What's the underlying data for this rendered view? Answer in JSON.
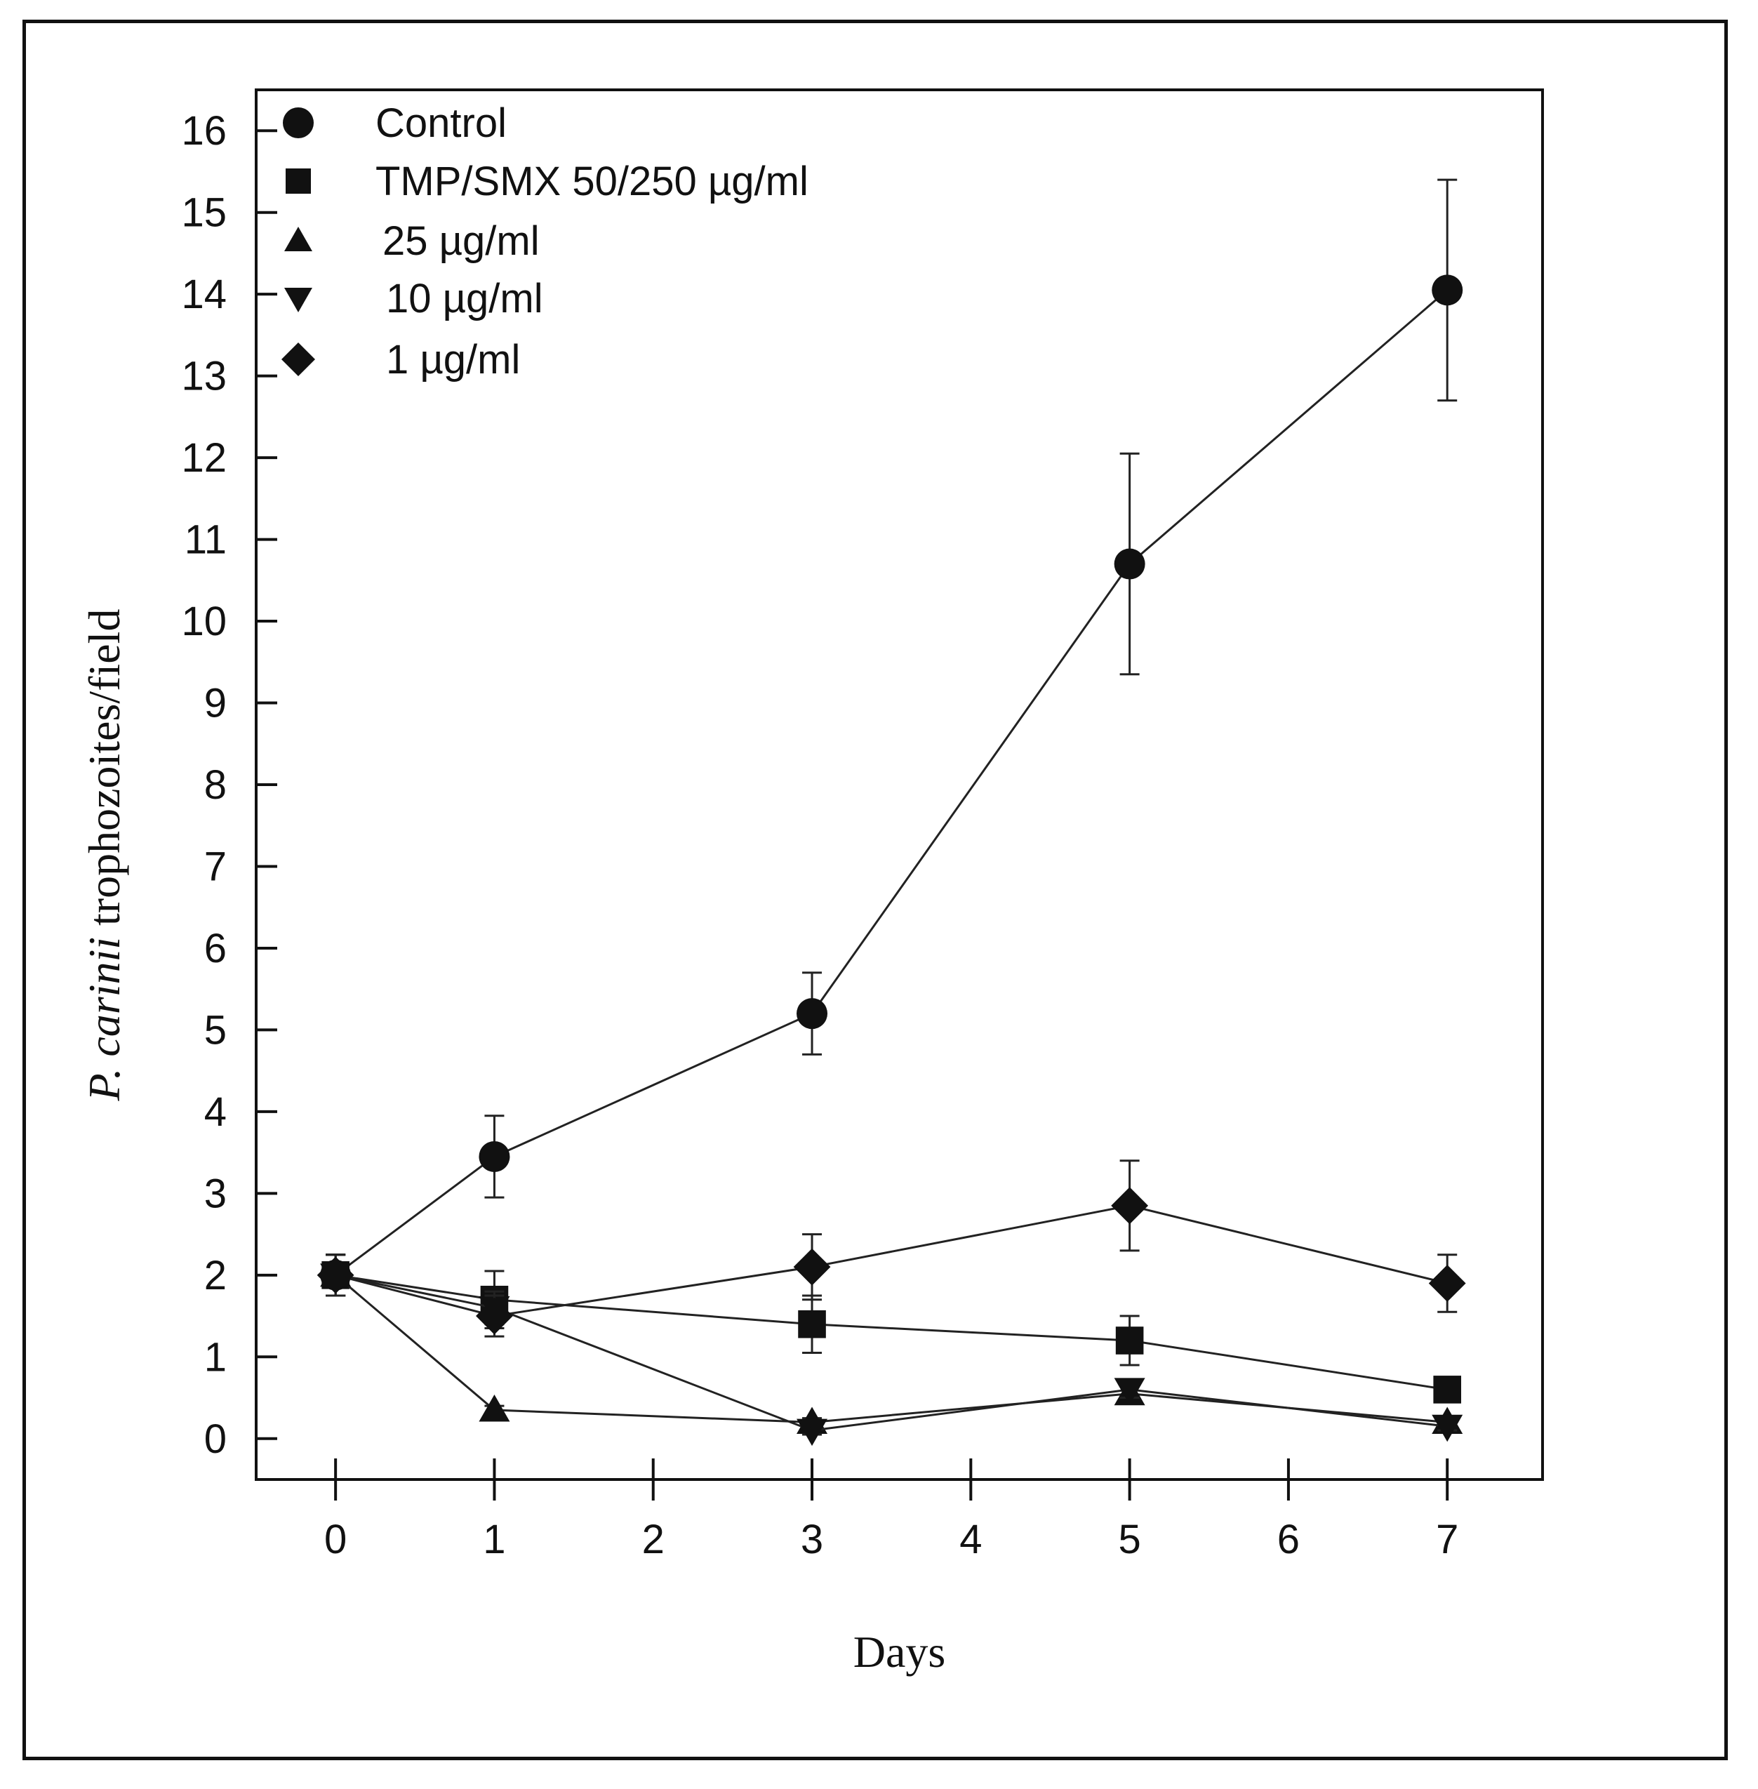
{
  "chart_data": {
    "type": "line",
    "title": "",
    "xlabel": "Days",
    "ylabel_italic": "P. carinii",
    "ylabel_rest": " trophozoites/field",
    "xlim": [
      -0.5,
      7.6
    ],
    "ylim": [
      -0.5,
      16.5
    ],
    "xticks": [
      0,
      1,
      2,
      3,
      4,
      5,
      6,
      7
    ],
    "yticks": [
      0,
      1,
      2,
      3,
      4,
      5,
      6,
      7,
      8,
      9,
      10,
      11,
      12,
      13,
      14,
      15,
      16
    ],
    "grid": false,
    "legend_position": "top-left",
    "series": [
      {
        "name": "Control",
        "marker": "circle",
        "x": [
          0,
          1,
          3,
          5,
          7
        ],
        "y": [
          2.0,
          3.45,
          5.2,
          10.7,
          14.05
        ],
        "err": [
          0.25,
          0.5,
          0.5,
          1.35,
          1.35
        ]
      },
      {
        "name": "TMP/SMX 50/250 µg/ml",
        "marker": "square",
        "x": [
          0,
          1,
          3,
          5,
          7
        ],
        "y": [
          2.0,
          1.7,
          1.4,
          1.2,
          0.6
        ],
        "err": [
          0.25,
          0.35,
          0.35,
          0.3,
          0.1
        ]
      },
      {
        "name": "25 µg/ml",
        "marker": "triangle-up",
        "x": [
          0,
          1,
          3,
          5,
          7
        ],
        "y": [
          2.0,
          0.35,
          0.2,
          0.55,
          0.2
        ],
        "err": [
          0.25,
          0.05,
          0.05,
          0.1,
          0.05
        ]
      },
      {
        "name": "10 µg/ml",
        "marker": "triangle-down",
        "x": [
          0,
          1,
          3,
          5,
          7
        ],
        "y": [
          2.0,
          1.6,
          0.1,
          0.6,
          0.15
        ],
        "err": [
          0.25,
          0.2,
          0.05,
          0.1,
          0.05
        ]
      },
      {
        "name": "1 µg/ml",
        "marker": "diamond",
        "x": [
          0,
          1,
          3,
          5,
          7
        ],
        "y": [
          2.0,
          1.5,
          2.1,
          2.85,
          1.9
        ],
        "err": [
          0.25,
          0.25,
          0.4,
          0.55,
          0.35
        ]
      }
    ]
  }
}
